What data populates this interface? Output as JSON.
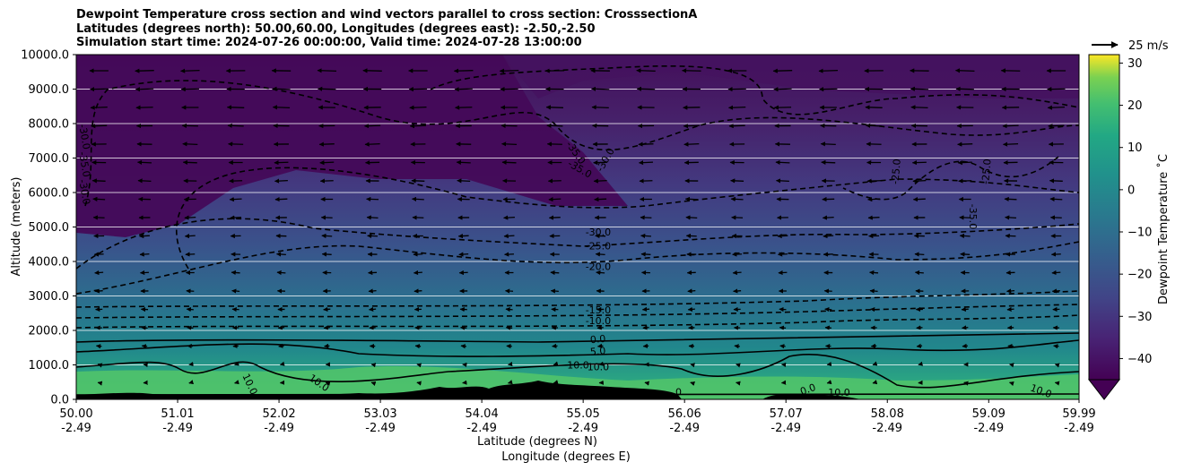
{
  "title_lines": [
    "Dewpoint Temperature cross section and wind vectors parallel to cross section: CrosssectionA",
    "Latitudes (degrees north): 50.00,60.00, Longitudes (degrees east): -2.50,-2.50",
    "Simulation start time: 2024-07-26 00:00:00, Valid time: 2024-07-28 13:00:00"
  ],
  "chart_data": {
    "type": "heatmap",
    "title": "Dewpoint Temperature cross section and wind vectors parallel to cross section: CrosssectionA",
    "ylabel": "Altitude (meters)",
    "xlabel_lines": [
      "Latitude (degrees N)",
      "Longitude (degrees E)"
    ],
    "xlim": [
      50.0,
      59.99
    ],
    "ylim": [
      0,
      10000
    ],
    "x_ticks": [
      {
        "lat": "50.00",
        "lon": "-2.49"
      },
      {
        "lat": "51.01",
        "lon": "-2.49"
      },
      {
        "lat": "52.02",
        "lon": "-2.49"
      },
      {
        "lat": "53.03",
        "lon": "-2.49"
      },
      {
        "lat": "54.04",
        "lon": "-2.49"
      },
      {
        "lat": "55.05",
        "lon": "-2.49"
      },
      {
        "lat": "56.06",
        "lon": "-2.49"
      },
      {
        "lat": "57.07",
        "lon": "-2.49"
      },
      {
        "lat": "58.08",
        "lon": "-2.49"
      },
      {
        "lat": "59.09",
        "lon": "-2.49"
      },
      {
        "lat": "59.99",
        "lon": "-2.49"
      }
    ],
    "y_ticks": [
      "0.0",
      "1000.0",
      "2000.0",
      "3000.0",
      "4000.0",
      "5000.0",
      "6000.0",
      "7000.0",
      "8000.0",
      "9000.0",
      "10000.0"
    ],
    "grid": "horizontal",
    "colorbar": {
      "label": "Dewpoint Temperature ˚C",
      "range": [
        -45,
        32
      ],
      "ticks": [
        "30",
        "20",
        "10",
        "0",
        "−10",
        "−20",
        "−30",
        "−40"
      ],
      "colormap": "viridis",
      "extend": "min"
    },
    "contour_labels": [
      {
        "text": "-30.0",
        "x": 50.05,
        "y": 7600,
        "angle": 80
      },
      {
        "text": "-35.0",
        "x": 50.05,
        "y": 6800,
        "angle": 80
      },
      {
        "text": "-30.0",
        "x": 50.05,
        "y": 6000,
        "angle": 80
      },
      {
        "text": "-35.0",
        "x": 54.95,
        "y": 7100,
        "angle": 55
      },
      {
        "text": "-35.0",
        "x": 55.0,
        "y": 6600,
        "angle": 30
      },
      {
        "text": "-30.0",
        "x": 55.3,
        "y": 6900,
        "angle": -60
      },
      {
        "text": "-30.0",
        "x": 55.2,
        "y": 4750,
        "angle": 0
      },
      {
        "text": "-25.0",
        "x": 55.2,
        "y": 4350,
        "angle": 0
      },
      {
        "text": "-20.0",
        "x": 55.2,
        "y": 3750,
        "angle": 0
      },
      {
        "text": "-15.0",
        "x": 55.2,
        "y": 2500,
        "angle": 0
      },
      {
        "text": "-10.0",
        "x": 55.2,
        "y": 2180,
        "angle": 0
      },
      {
        "text": "0.0",
        "x": 55.2,
        "y": 1650,
        "angle": -5
      },
      {
        "text": "5.0",
        "x": 55.2,
        "y": 1300,
        "angle": -5
      },
      {
        "text": "10.0",
        "x": 55.0,
        "y": 900,
        "angle": 0
      },
      {
        "text": "10.0",
        "x": 55.2,
        "y": 850,
        "angle": 0
      },
      {
        "text": "10.0",
        "x": 51.7,
        "y": 400,
        "angle": 65
      },
      {
        "text": "10.0",
        "x": 52.4,
        "y": 400,
        "angle": 35
      },
      {
        "text": "-25.0",
        "x": 58.2,
        "y": 6600,
        "angle": -85
      },
      {
        "text": "-25.0",
        "x": 59.1,
        "y": 6600,
        "angle": -85
      },
      {
        "text": "-35.0",
        "x": 58.9,
        "y": 5300,
        "angle": 90
      },
      {
        "text": "0",
        "x": 56.0,
        "y": 120,
        "angle": 0
      },
      {
        "text": "0.0",
        "x": 57.3,
        "y": 200,
        "angle": -20
      },
      {
        "text": "10.0",
        "x": 57.6,
        "y": 100,
        "angle": 0
      },
      {
        "text": "10.0",
        "x": 59.6,
        "y": 150,
        "angle": 20
      }
    ],
    "quiver_key": {
      "label": "25 m/s",
      "value": 25
    },
    "wind": "predominantly southward (leftward) flow aloft, weakening toward the surface"
  }
}
